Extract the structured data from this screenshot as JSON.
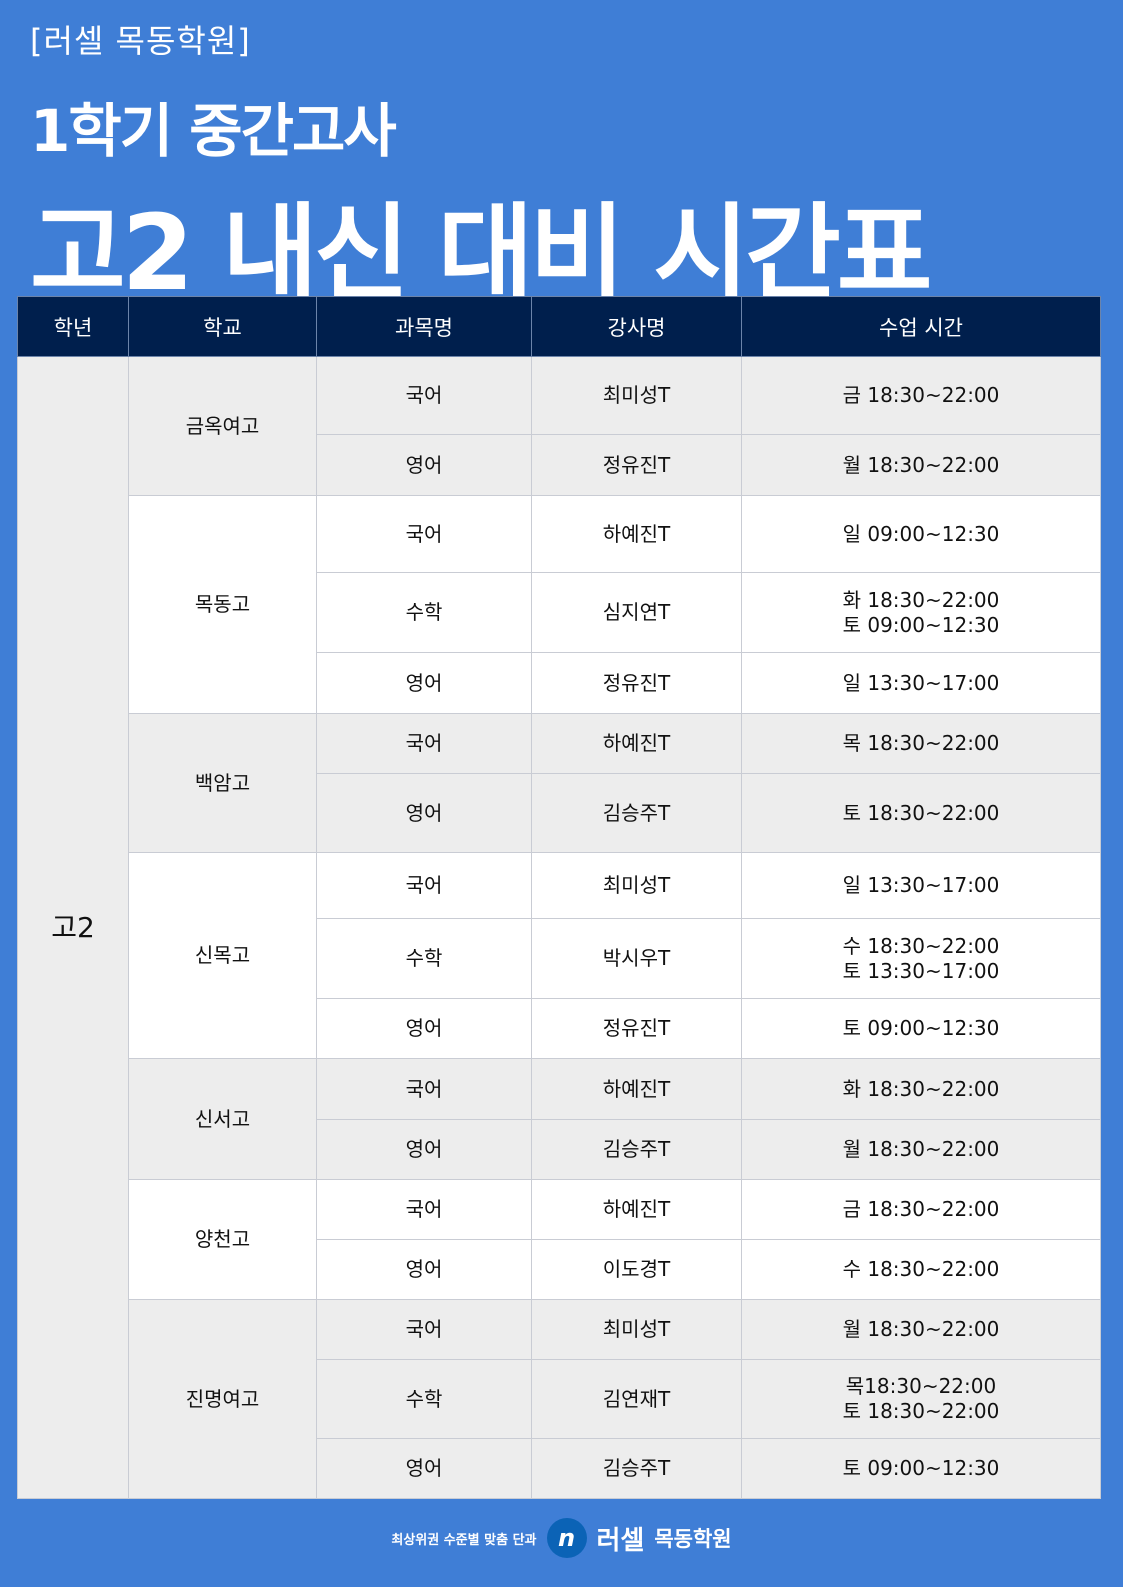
{
  "header": {
    "brand": "[러셀 목동학원]",
    "subtitle": "1학기 중간고사",
    "title": "고2 내신 대비 시간표"
  },
  "table": {
    "columns": [
      "학년",
      "학교",
      "과목명",
      "강사명",
      "수업 시간"
    ],
    "grade": "고2",
    "schools": [
      {
        "name": "금옥여고",
        "rows": [
          {
            "subject": "국어",
            "teacher": "최미성T",
            "time": [
              "금 18:30~22:00"
            ]
          },
          {
            "subject": "영어",
            "teacher": "정유진T",
            "time": [
              "월 18:30~22:00"
            ]
          }
        ]
      },
      {
        "name": "목동고",
        "rows": [
          {
            "subject": "국어",
            "teacher": "하예진T",
            "time": [
              "일 09:00~12:30"
            ]
          },
          {
            "subject": "수학",
            "teacher": "심지연T",
            "time": [
              "화 18:30~22:00",
              "토 09:00~12:30"
            ]
          },
          {
            "subject": "영어",
            "teacher": "정유진T",
            "time": [
              "일 13:30~17:00"
            ]
          }
        ]
      },
      {
        "name": "백암고",
        "rows": [
          {
            "subject": "국어",
            "teacher": "하예진T",
            "time": [
              "목 18:30~22:00"
            ]
          },
          {
            "subject": "영어",
            "teacher": "김승주T",
            "time": [
              "토 18:30~22:00"
            ]
          }
        ]
      },
      {
        "name": "신목고",
        "rows": [
          {
            "subject": "국어",
            "teacher": "최미성T",
            "time": [
              "일 13:30~17:00"
            ]
          },
          {
            "subject": "수학",
            "teacher": "박시우T",
            "time": [
              "수 18:30~22:00",
              "토 13:30~17:00"
            ]
          },
          {
            "subject": "영어",
            "teacher": "정유진T",
            "time": [
              "토 09:00~12:30"
            ]
          }
        ]
      },
      {
        "name": "신서고",
        "rows": [
          {
            "subject": "국어",
            "teacher": "하예진T",
            "time": [
              "화 18:30~22:00"
            ]
          },
          {
            "subject": "영어",
            "teacher": "김승주T",
            "time": [
              "월 18:30~22:00"
            ]
          }
        ]
      },
      {
        "name": "양천고",
        "rows": [
          {
            "subject": "국어",
            "teacher": "하예진T",
            "time": [
              "금 18:30~22:00"
            ]
          },
          {
            "subject": "영어",
            "teacher": "이도경T",
            "time": [
              "수 18:30~22:00"
            ]
          }
        ]
      },
      {
        "name": "진명여고",
        "rows": [
          {
            "subject": "국어",
            "teacher": "최미성T",
            "time": [
              "월 18:30~22:00"
            ]
          },
          {
            "subject": "수학",
            "teacher": "김연재T",
            "time": [
              "목18:30~22:00",
              "토 18:30~22:00"
            ]
          },
          {
            "subject": "영어",
            "teacher": "김승주T",
            "time": [
              "토 09:00~12:30"
            ]
          }
        ]
      }
    ]
  },
  "footer": {
    "slogan": "최상위권 수준별 맞춤 단과",
    "logo_mark": "n",
    "logo_name": "러셀",
    "logo_sub": "목동학원"
  },
  "colors": {
    "background": "#3f7ed6",
    "header_row": "#001f4d",
    "row_gray": "#ededed"
  }
}
